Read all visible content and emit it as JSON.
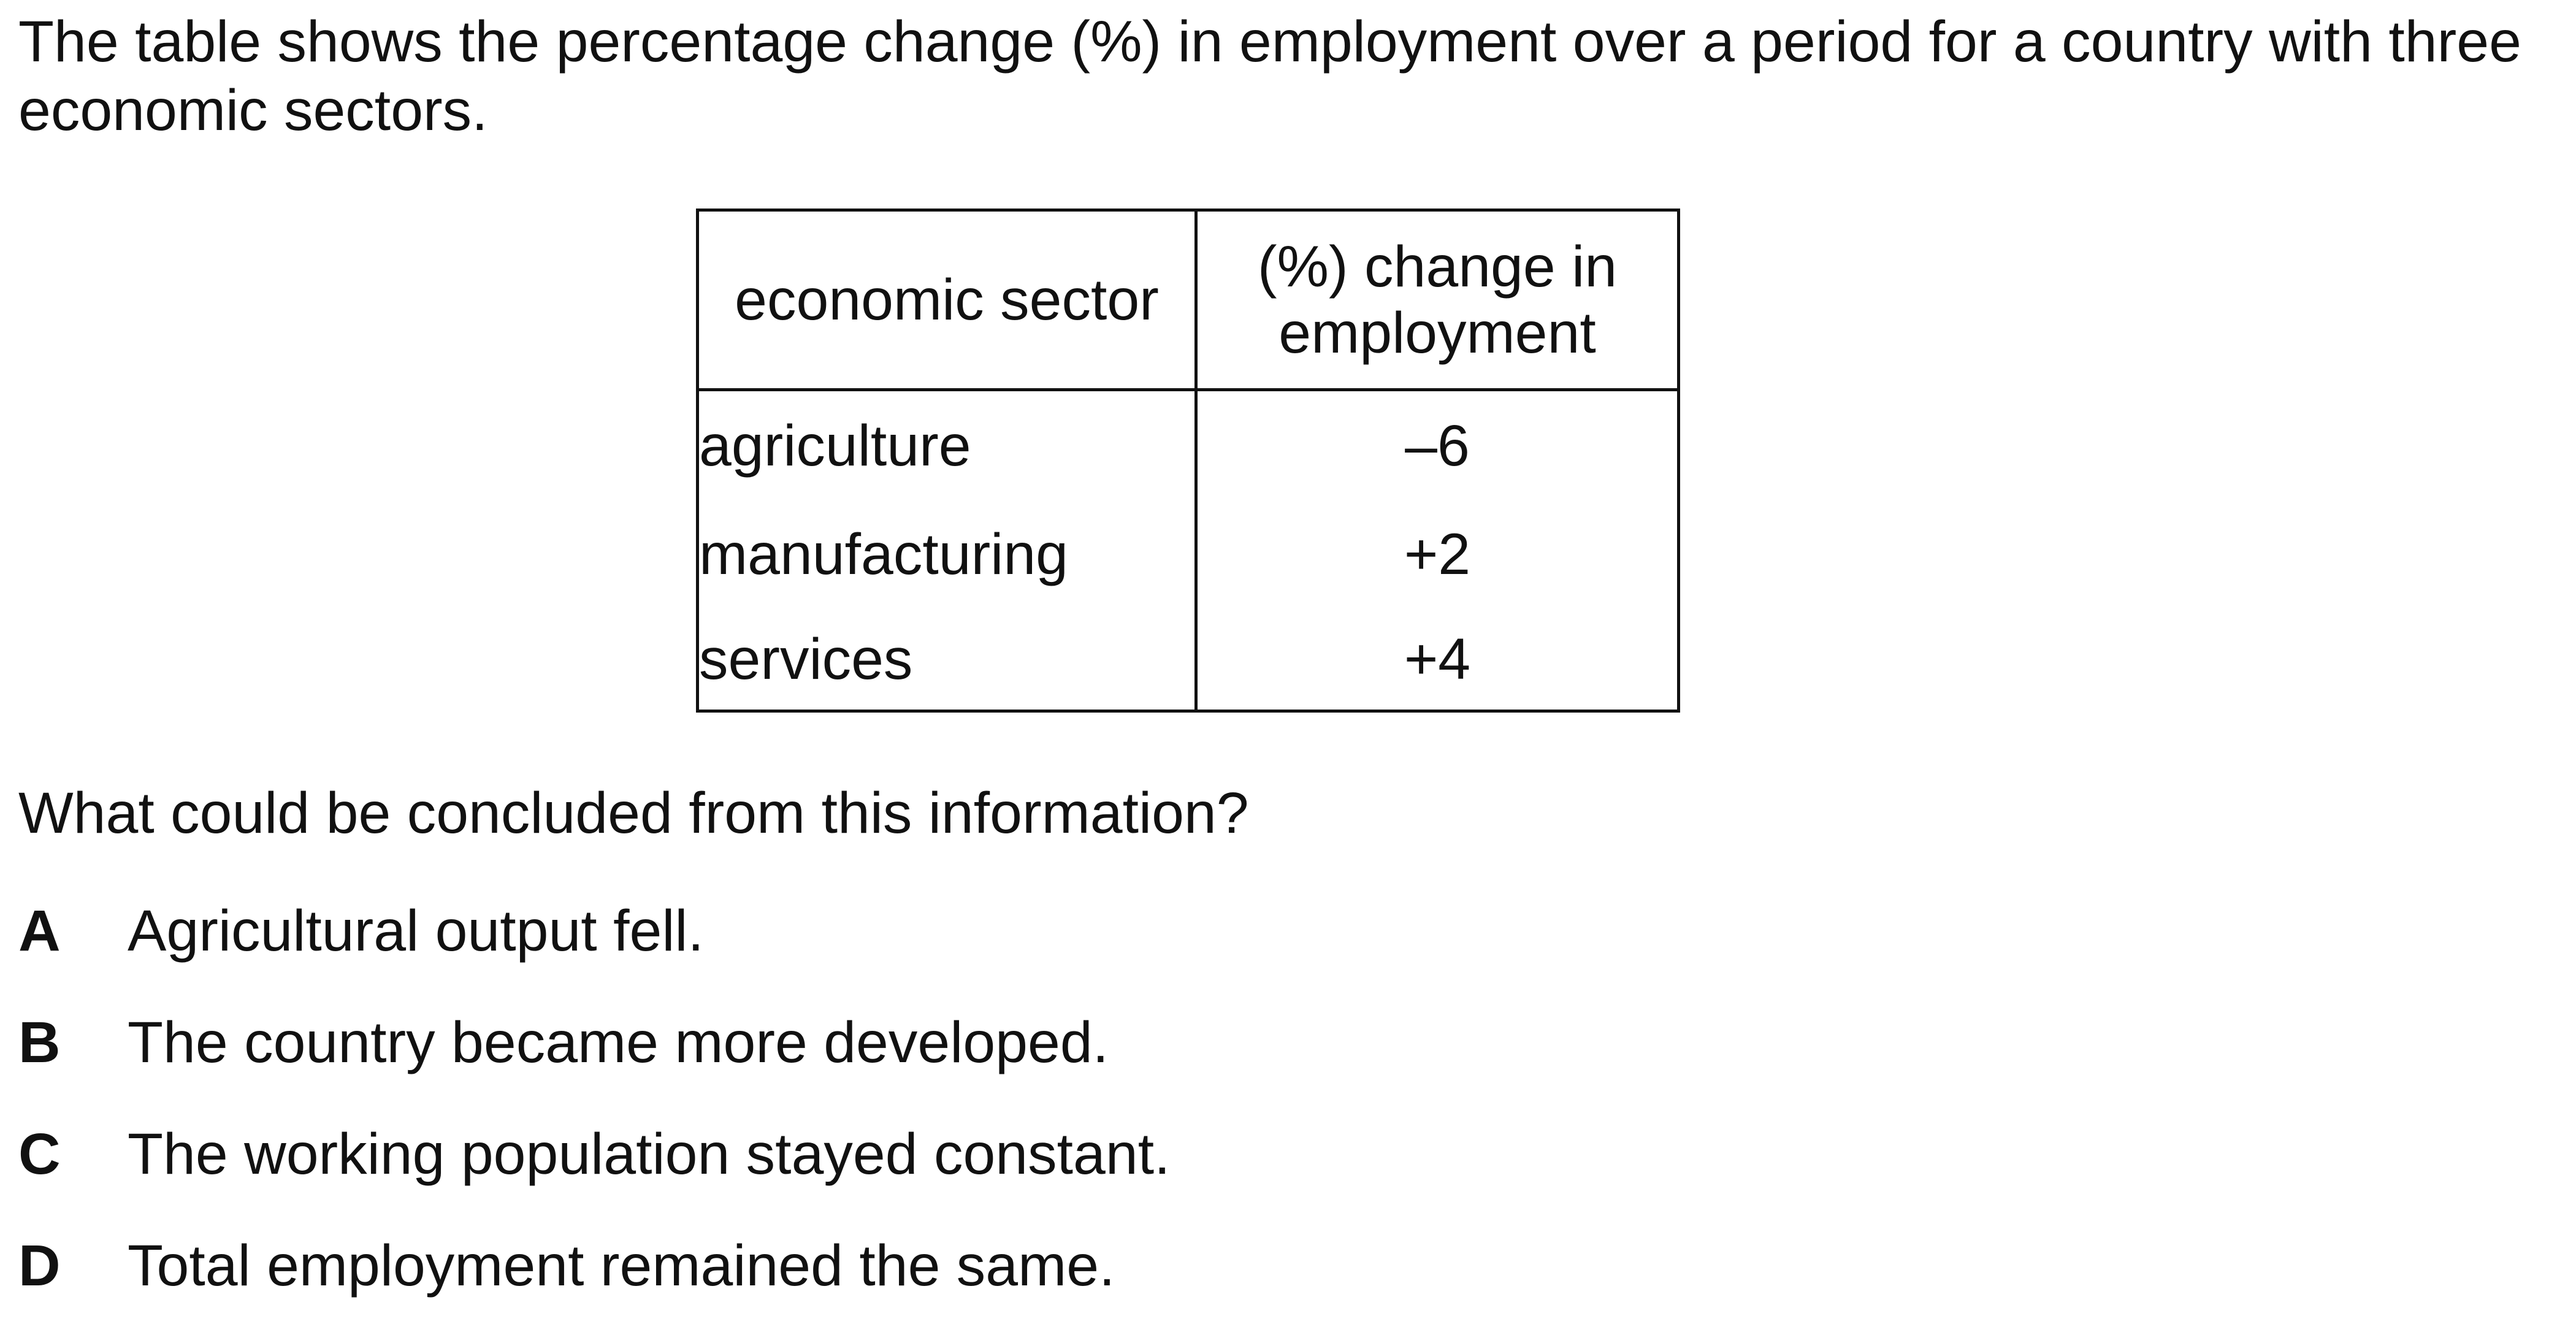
{
  "intro_text": "The table shows the percentage change (%) in employment over a period for a country with three economic sectors.",
  "table": {
    "headers": [
      "economic sector",
      "(%) change in employment"
    ],
    "rows": [
      {
        "sector": "agriculture",
        "change": "–6"
      },
      {
        "sector": "manufacturing",
        "change": "+2"
      },
      {
        "sector": "services",
        "change": "+4"
      }
    ]
  },
  "question": "What could be concluded from this information?",
  "options": [
    {
      "letter": "A",
      "text": "Agricultural output fell."
    },
    {
      "letter": "B",
      "text": "The country became more developed."
    },
    {
      "letter": "C",
      "text": "The working population stayed constant."
    },
    {
      "letter": "D",
      "text": "Total employment remained the same."
    }
  ]
}
